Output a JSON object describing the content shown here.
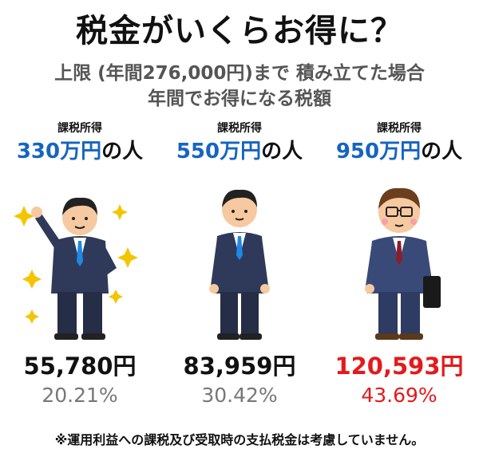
{
  "title": "税金がいくらお得に？",
  "subtitle_line1": "上限 (年間276,000円)まで 積み立てた場合",
  "subtitle_line2": "年間でお得になる税額",
  "columns": [
    {
      "income_label": "課税所得",
      "income_amount": "330万円",
      "income_suffix": "の人",
      "saving": "55,780円",
      "rate": "20.21%",
      "figure": "cheering-man-icon"
    },
    {
      "income_label": "課税所得",
      "income_amount": "550万円",
      "income_suffix": "の人",
      "saving": "83,959円",
      "rate": "30.42%",
      "figure": "standing-man-icon"
    },
    {
      "income_label": "課税所得",
      "income_amount": "950万円",
      "income_suffix": "の人",
      "saving": "120,593円",
      "rate": "43.69%",
      "figure": "glasses-man-icon"
    }
  ],
  "note": "※運用利益への課税及び受取時の支払税金は考慮していません。",
  "colors": {
    "amount_blue": "#1565c0",
    "highlight_red": "#e5191b",
    "subtitle_gray": "#555555",
    "rate_gray": "#777777",
    "suit_navy": "#2f3a5a",
    "sparkle_yellow": "#f5c400"
  }
}
